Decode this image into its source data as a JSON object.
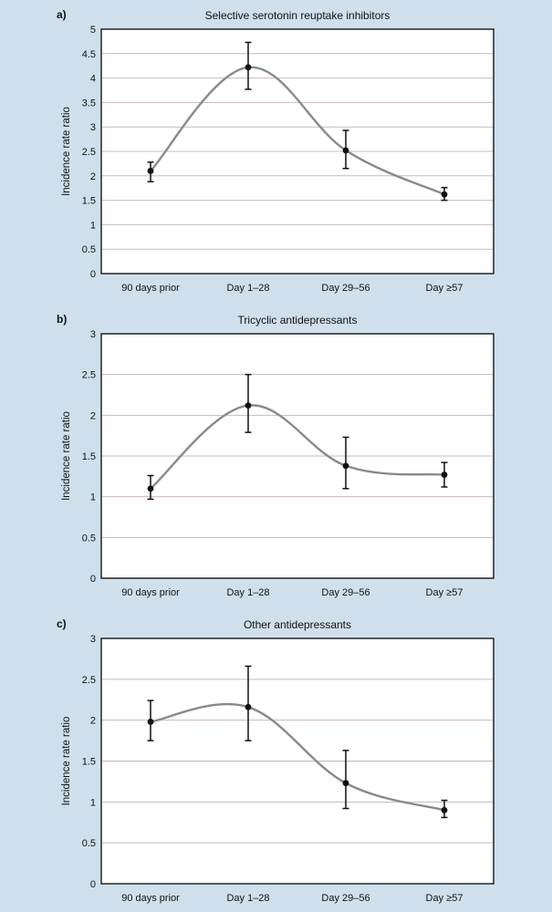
{
  "chart_data": [
    {
      "type": "line",
      "panel_label": "a)",
      "title": "Selective serotonin reuptake inhibitors",
      "xlabel": "",
      "ylabel": "Incidence rate ratio",
      "ylim": [
        0,
        5
      ],
      "yticks": [
        0,
        0.5,
        1,
        1.5,
        2,
        2.5,
        3,
        3.5,
        4,
        4.5,
        5
      ],
      "ytick_labels": [
        "0",
        "0.5",
        "1",
        "1.5",
        "2",
        "2.5",
        "3",
        "3.5",
        "4",
        "4.5",
        "5"
      ],
      "categories": [
        "90 days prior",
        "Day 1–28",
        "Day 29–56",
        "Day ≥57"
      ],
      "values": [
        2.1,
        4.22,
        2.52,
        1.62
      ],
      "ci_lower": [
        1.88,
        3.77,
        2.15,
        1.5
      ],
      "ci_upper": [
        2.28,
        4.73,
        2.93,
        1.76
      ]
    },
    {
      "type": "line",
      "panel_label": "b)",
      "title": "Tricyclic antidepressants",
      "xlabel": "",
      "ylabel": "Incidence rate ratio",
      "ylim": [
        0,
        3
      ],
      "yticks": [
        0,
        0.5,
        1,
        1.5,
        2,
        2.5,
        3
      ],
      "ytick_labels": [
        "0",
        "0.5",
        "1",
        "1.5",
        "2",
        "2.5",
        "3"
      ],
      "categories": [
        "90 days prior",
        "Day 1–28",
        "Day 29–56",
        "Day ≥57"
      ],
      "values": [
        1.1,
        2.12,
        1.38,
        1.27
      ],
      "ci_lower": [
        0.97,
        1.79,
        1.1,
        1.12
      ],
      "ci_upper": [
        1.26,
        2.5,
        1.73,
        1.42
      ]
    },
    {
      "type": "line",
      "panel_label": "c)",
      "title": "Other antidepressants",
      "xlabel": "",
      "ylabel": "Incidence rate ratio",
      "ylim": [
        0,
        3
      ],
      "yticks": [
        0,
        0.5,
        1,
        1.5,
        2,
        2.5,
        3
      ],
      "ytick_labels": [
        "0",
        "0.5",
        "1",
        "1.5",
        "2",
        "2.5",
        "3"
      ],
      "categories": [
        "90 days prior",
        "Day 1–28",
        "Day 29–56",
        "Day ≥57"
      ],
      "values": [
        1.98,
        2.16,
        1.23,
        0.9
      ],
      "ci_lower": [
        1.75,
        1.75,
        0.92,
        0.81
      ],
      "ci_upper": [
        2.24,
        2.66,
        1.63,
        1.02
      ]
    }
  ],
  "colors": {
    "background": "#cfe0ec",
    "plot_area": "#ffffff",
    "gridline": "#c9b8c4",
    "curve": "#8a8a8a",
    "marker": "#111111"
  }
}
